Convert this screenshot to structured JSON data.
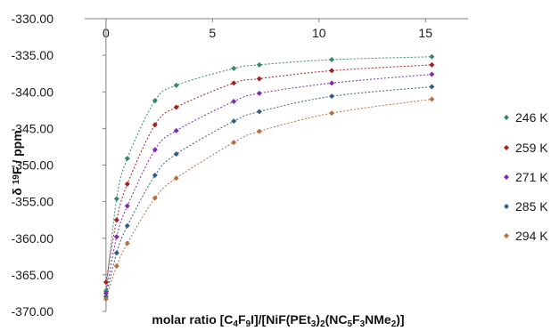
{
  "chart_data": {
    "type": "scatter",
    "title": "",
    "xlabel_parts": [
      {
        "t": "molar ratio [C"
      },
      {
        "t": "4",
        "s": "sub"
      },
      {
        "t": "F"
      },
      {
        "t": "9",
        "s": "sub"
      },
      {
        "t": "I]/[NiF(PEt"
      },
      {
        "t": "3",
        "s": "sub"
      },
      {
        "t": ")"
      },
      {
        "t": "2",
        "s": "sub"
      },
      {
        "t": "(NC"
      },
      {
        "t": "5",
        "s": "sub"
      },
      {
        "t": "F"
      },
      {
        "t": "3",
        "s": "sub"
      },
      {
        "t": "NMe"
      },
      {
        "t": "2",
        "s": "sub"
      },
      {
        "t": ")]"
      }
    ],
    "ylabel_parts": [
      {
        "t": "δ "
      },
      {
        "t": "19",
        "s": "sup"
      },
      {
        "t": "F / ppm"
      }
    ],
    "xlim": [
      -1,
      17
    ],
    "ylim": [
      -370,
      -330
    ],
    "x_axis_crosses_at": -330,
    "x_ticks": [
      0,
      5,
      10,
      15
    ],
    "x_tick_labels": [
      "0",
      "5",
      "10",
      "15"
    ],
    "y_ticks": [
      -330,
      -335,
      -340,
      -345,
      -350,
      -355,
      -360,
      -365,
      -370
    ],
    "y_tick_labels": [
      "-330.00",
      "-335.00",
      "-340.00",
      "-345.00",
      "-350.00",
      "-355.00",
      "-360.00",
      "-365.00",
      "-370.00"
    ],
    "grid": false,
    "legend_position": "right",
    "series": [
      {
        "name": "246 K",
        "color": "#31866b",
        "x": [
          0.0,
          0.5,
          1.0,
          2.3,
          3.3,
          6.0,
          7.2,
          10.6,
          15.3
        ],
        "y": [
          -367.2,
          -354.6,
          -349.1,
          -341.2,
          -339.1,
          -336.8,
          -336.3,
          -335.6,
          -335.2
        ]
      },
      {
        "name": "259 K",
        "color": "#a51f1f",
        "x": [
          0.0,
          0.5,
          1.0,
          2.3,
          3.3,
          6.0,
          7.2,
          10.6,
          15.3
        ],
        "y": [
          -366.0,
          -357.5,
          -352.6,
          -344.5,
          -342.1,
          -338.8,
          -338.2,
          -337.1,
          -336.3
        ]
      },
      {
        "name": "271 K",
        "color": "#7d2ab4",
        "x": [
          0.0,
          0.5,
          1.0,
          2.3,
          3.3,
          6.0,
          7.2,
          10.6,
          15.3
        ],
        "y": [
          -367.5,
          -359.8,
          -355.6,
          -347.9,
          -345.3,
          -341.3,
          -340.2,
          -338.8,
          -337.6
        ]
      },
      {
        "name": "285 K",
        "color": "#2e5d86",
        "x": [
          0.0,
          0.5,
          1.0,
          2.3,
          3.3,
          6.0,
          7.2,
          10.6,
          15.3
        ],
        "y": [
          -368.0,
          -362.0,
          -358.3,
          -351.4,
          -348.5,
          -344.0,
          -342.7,
          -340.6,
          -339.3
        ]
      },
      {
        "name": "294 K",
        "color": "#bb6d3b",
        "x": [
          0.0,
          0.5,
          1.0,
          2.3,
          3.3,
          6.0,
          7.2,
          10.6,
          15.3
        ],
        "y": [
          -368.3,
          -363.8,
          -360.7,
          -354.5,
          -351.8,
          -346.9,
          -345.4,
          -342.9,
          -341.0
        ]
      }
    ]
  }
}
